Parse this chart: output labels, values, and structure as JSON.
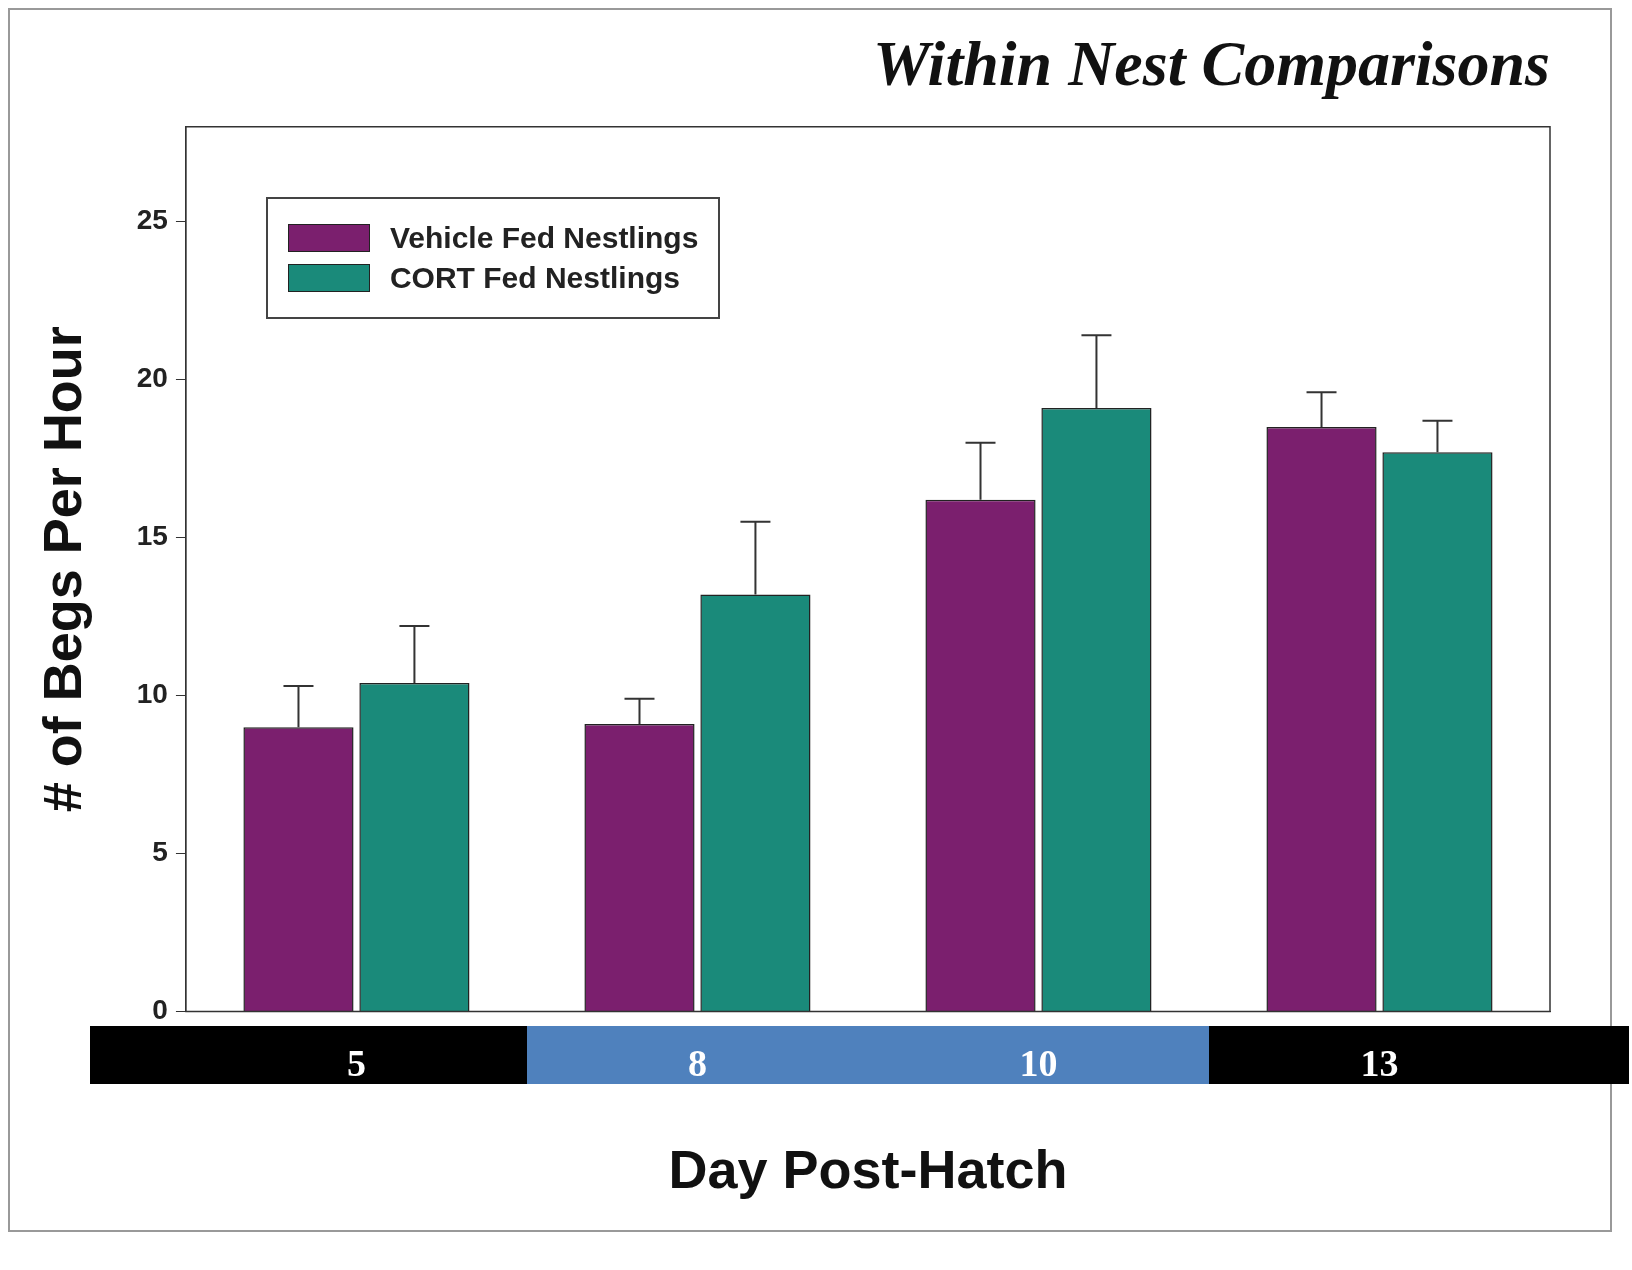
{
  "chart_data": {
    "type": "bar",
    "title": "Within Nest Comparisons",
    "xlabel": "Day Post-Hatch",
    "ylabel": "# of Begs Per Hour",
    "categories": [
      "5",
      "8",
      "10",
      "13"
    ],
    "series": [
      {
        "name": "Vehicle Fed Nestlings",
        "color": "#7b1f6e",
        "values": [
          9.0,
          9.1,
          16.2,
          18.5
        ],
        "errors": [
          [
            9.0,
            10.3
          ],
          [
            9.1,
            9.9
          ],
          [
            16.2,
            18.0
          ],
          [
            18.5,
            19.6
          ]
        ]
      },
      {
        "name": "CORT Fed Nestlings",
        "color": "#1a8a7a",
        "values": [
          10.4,
          13.2,
          19.1,
          17.7
        ],
        "errors": [
          [
            10.4,
            12.2
          ],
          [
            13.2,
            15.5
          ],
          [
            19.1,
            21.4
          ],
          [
            17.7,
            18.7
          ]
        ]
      }
    ],
    "ylim": [
      0,
      28
    ],
    "yticks": [
      0,
      5,
      10,
      15,
      20,
      25
    ],
    "grid": false,
    "legend": "top left"
  }
}
